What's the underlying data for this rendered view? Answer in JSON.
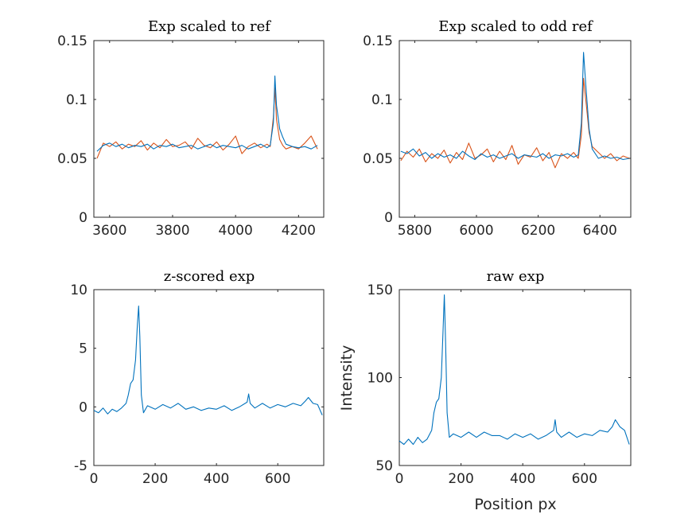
{
  "colors": {
    "series_blue": "#0072BD",
    "series_orange": "#D95319",
    "axis": "#262626"
  },
  "chart_data": [
    {
      "type": "line",
      "title": "Exp scaled to ref",
      "xlabel": "",
      "ylabel": "",
      "xlim": [
        3550,
        4280
      ],
      "ylim": [
        0,
        0.15
      ],
      "xticks": [
        3600,
        3800,
        4000,
        4200
      ],
      "xtick_labels": [
        "3600",
        "3800",
        "4000",
        "4200"
      ],
      "yticks": [
        0,
        0.05,
        0.1,
        0.15
      ],
      "ytick_labels": [
        "0",
        "0.05",
        "0.1",
        "0.15"
      ],
      "grid": false,
      "series": [
        {
          "color": "#D95319",
          "x": [
            3560,
            3580,
            3600,
            3620,
            3640,
            3660,
            3680,
            3700,
            3720,
            3740,
            3760,
            3780,
            3800,
            3820,
            3840,
            3860,
            3880,
            3900,
            3920,
            3940,
            3960,
            3980,
            4000,
            4020,
            4040,
            4060,
            4080,
            4100,
            4110,
            4120,
            4125,
            4130,
            4140,
            4150,
            4160,
            4180,
            4200,
            4220,
            4240,
            4260
          ],
          "y": [
            0.05,
            0.063,
            0.06,
            0.064,
            0.058,
            0.062,
            0.06,
            0.065,
            0.057,
            0.063,
            0.059,
            0.066,
            0.06,
            0.061,
            0.064,
            0.058,
            0.067,
            0.061,
            0.059,
            0.064,
            0.057,
            0.062,
            0.069,
            0.054,
            0.06,
            0.063,
            0.059,
            0.062,
            0.06,
            0.085,
            0.11,
            0.083,
            0.066,
            0.061,
            0.058,
            0.06,
            0.058,
            0.063,
            0.069,
            0.058
          ]
        },
        {
          "color": "#0072BD",
          "x": [
            3560,
            3580,
            3600,
            3620,
            3640,
            3660,
            3680,
            3700,
            3720,
            3740,
            3760,
            3780,
            3800,
            3820,
            3840,
            3860,
            3880,
            3900,
            3920,
            3940,
            3960,
            3980,
            4000,
            4020,
            4040,
            4060,
            4080,
            4100,
            4110,
            4120,
            4125,
            4130,
            4140,
            4150,
            4160,
            4180,
            4200,
            4220,
            4240,
            4260
          ],
          "y": [
            0.056,
            0.061,
            0.063,
            0.06,
            0.062,
            0.059,
            0.061,
            0.06,
            0.062,
            0.058,
            0.061,
            0.06,
            0.062,
            0.059,
            0.06,
            0.061,
            0.058,
            0.06,
            0.062,
            0.059,
            0.061,
            0.06,
            0.059,
            0.061,
            0.058,
            0.06,
            0.062,
            0.059,
            0.061,
            0.08,
            0.12,
            0.095,
            0.075,
            0.068,
            0.062,
            0.06,
            0.059,
            0.06,
            0.058,
            0.061
          ]
        }
      ]
    },
    {
      "type": "line",
      "title": "Exp scaled to odd ref",
      "xlabel": "",
      "ylabel": "",
      "xlim": [
        5750,
        6500
      ],
      "ylim": [
        0,
        0.15
      ],
      "xticks": [
        5800,
        6000,
        6200,
        6400
      ],
      "xtick_labels": [
        "5800",
        "6000",
        "6200",
        "6400"
      ],
      "yticks": [
        0,
        0.05,
        0.1,
        0.15
      ],
      "ytick_labels": [
        "0",
        "0.05",
        "0.1",
        "0.15"
      ],
      "grid": false,
      "series": [
        {
          "color": "#D95319",
          "x": [
            5755,
            5775,
            5795,
            5815,
            5835,
            5855,
            5875,
            5895,
            5915,
            5935,
            5955,
            5975,
            5995,
            6015,
            6035,
            6055,
            6075,
            6095,
            6115,
            6135,
            6155,
            6175,
            6195,
            6215,
            6235,
            6255,
            6275,
            6295,
            6315,
            6330,
            6340,
            6347,
            6355,
            6365,
            6375,
            6395,
            6415,
            6435,
            6455,
            6475,
            6495
          ],
          "y": [
            0.048,
            0.056,
            0.051,
            0.058,
            0.047,
            0.054,
            0.05,
            0.057,
            0.046,
            0.055,
            0.049,
            0.063,
            0.05,
            0.053,
            0.058,
            0.047,
            0.056,
            0.049,
            0.061,
            0.045,
            0.053,
            0.051,
            0.059,
            0.048,
            0.055,
            0.042,
            0.054,
            0.05,
            0.055,
            0.05,
            0.07,
            0.118,
            0.098,
            0.072,
            0.06,
            0.055,
            0.05,
            0.054,
            0.048,
            0.052,
            0.05
          ]
        },
        {
          "color": "#0072BD",
          "x": [
            5755,
            5775,
            5795,
            5815,
            5835,
            5855,
            5875,
            5895,
            5915,
            5935,
            5955,
            5975,
            5995,
            6015,
            6035,
            6055,
            6075,
            6095,
            6115,
            6135,
            6155,
            6175,
            6195,
            6215,
            6235,
            6255,
            6275,
            6295,
            6315,
            6330,
            6340,
            6347,
            6355,
            6365,
            6375,
            6395,
            6415,
            6435,
            6455,
            6475,
            6495
          ],
          "y": [
            0.056,
            0.054,
            0.058,
            0.052,
            0.055,
            0.05,
            0.054,
            0.051,
            0.053,
            0.05,
            0.056,
            0.052,
            0.049,
            0.054,
            0.051,
            0.053,
            0.05,
            0.052,
            0.054,
            0.05,
            0.053,
            0.052,
            0.051,
            0.054,
            0.05,
            0.053,
            0.052,
            0.054,
            0.051,
            0.053,
            0.08,
            0.14,
            0.11,
            0.075,
            0.058,
            0.05,
            0.052,
            0.05,
            0.051,
            0.049,
            0.05
          ]
        }
      ]
    },
    {
      "type": "line",
      "title": "z-scored exp",
      "xlabel": "",
      "ylabel": "",
      "xlim": [
        0,
        750
      ],
      "ylim": [
        -5,
        10
      ],
      "xticks": [
        0,
        200,
        400,
        600
      ],
      "xtick_labels": [
        "0",
        "200",
        "400",
        "600"
      ],
      "yticks": [
        -5,
        0,
        5,
        10
      ],
      "ytick_labels": [
        "-5",
        "0",
        "5",
        "10"
      ],
      "grid": false,
      "series": [
        {
          "color": "#0072BD",
          "x": [
            0,
            15,
            30,
            45,
            60,
            75,
            90,
            105,
            112,
            120,
            128,
            136,
            142,
            146,
            150,
            155,
            162,
            175,
            200,
            225,
            250,
            275,
            300,
            325,
            350,
            375,
            400,
            425,
            450,
            475,
            500,
            505,
            510,
            525,
            550,
            575,
            600,
            625,
            650,
            675,
            690,
            700,
            715,
            730,
            745
          ],
          "y": [
            -0.3,
            -0.5,
            -0.1,
            -0.6,
            -0.2,
            -0.4,
            -0.1,
            0.3,
            1.0,
            2.0,
            2.3,
            4.0,
            7.0,
            8.6,
            6.0,
            1.0,
            -0.5,
            0.1,
            -0.2,
            0.2,
            -0.1,
            0.3,
            -0.2,
            0.0,
            -0.3,
            -0.1,
            -0.2,
            0.1,
            -0.3,
            0.0,
            0.4,
            1.1,
            0.3,
            -0.1,
            0.3,
            -0.1,
            0.2,
            0.0,
            0.3,
            0.1,
            0.5,
            0.8,
            0.3,
            0.2,
            -0.7
          ]
        }
      ]
    },
    {
      "type": "line",
      "title": "raw exp",
      "xlabel": "Position px",
      "ylabel": "Intensity",
      "xlim": [
        0,
        750
      ],
      "ylim": [
        50,
        150
      ],
      "xticks": [
        0,
        200,
        400,
        600
      ],
      "xtick_labels": [
        "0",
        "200",
        "400",
        "600"
      ],
      "yticks": [
        50,
        100,
        150
      ],
      "ytick_labels": [
        "50",
        "100",
        "150"
      ],
      "grid": false,
      "series": [
        {
          "color": "#0072BD",
          "x": [
            0,
            15,
            30,
            45,
            60,
            75,
            90,
            105,
            112,
            120,
            128,
            136,
            142,
            146,
            150,
            155,
            162,
            175,
            200,
            225,
            250,
            275,
            300,
            325,
            350,
            375,
            400,
            425,
            450,
            475,
            500,
            505,
            510,
            525,
            550,
            575,
            600,
            625,
            650,
            675,
            690,
            700,
            715,
            730,
            745
          ],
          "y": [
            64,
            62,
            65,
            62,
            66,
            63,
            65,
            70,
            80,
            86,
            88,
            100,
            128,
            147,
            120,
            80,
            66,
            68,
            66,
            69,
            66,
            69,
            67,
            67,
            65,
            68,
            66,
            68,
            65,
            67,
            70,
            76,
            69,
            66,
            69,
            66,
            68,
            67,
            70,
            69,
            72,
            76,
            72,
            70,
            62
          ]
        }
      ]
    }
  ]
}
